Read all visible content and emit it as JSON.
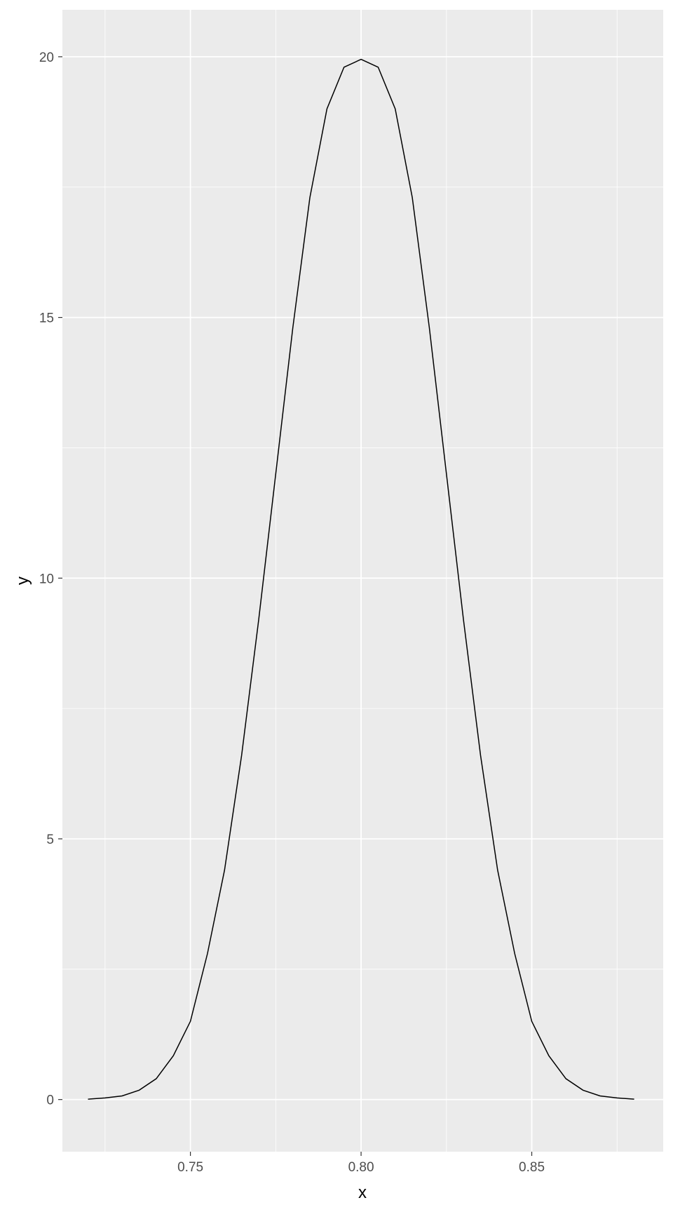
{
  "chart_data": {
    "type": "line",
    "title": "",
    "xlabel": "x",
    "ylabel": "y",
    "xlim": [
      0.7125,
      0.8885
    ],
    "ylim": [
      -1.0,
      20.9
    ],
    "x_ticks": [
      {
        "value": 0.75,
        "label": "0.75"
      },
      {
        "value": 0.8,
        "label": "0.80"
      },
      {
        "value": 0.85,
        "label": "0.85"
      }
    ],
    "y_ticks": [
      {
        "value": 0,
        "label": "0"
      },
      {
        "value": 5,
        "label": "5"
      },
      {
        "value": 10,
        "label": "10"
      },
      {
        "value": 15,
        "label": "15"
      },
      {
        "value": 20,
        "label": "20"
      }
    ],
    "x_minor": [
      0.725,
      0.775,
      0.825,
      0.875
    ],
    "y_minor": [
      2.5,
      7.5,
      12.5,
      17.5
    ],
    "grid": true,
    "panel_background": "#ebebeb",
    "grid_color": "#ffffff",
    "line_color": "#000000",
    "series": [
      {
        "x": [
          0.72,
          0.725,
          0.73,
          0.735,
          0.74,
          0.745,
          0.75,
          0.755,
          0.76,
          0.765,
          0.77,
          0.775,
          0.78,
          0.785,
          0.79,
          0.795,
          0.8,
          0.805,
          0.81,
          0.815,
          0.82,
          0.825,
          0.83,
          0.835,
          0.84,
          0.845,
          0.85,
          0.855,
          0.86,
          0.865,
          0.87,
          0.875,
          0.88
        ],
        "y": [
          0.007,
          0.03,
          0.07,
          0.18,
          0.4,
          0.84,
          1.5,
          2.8,
          4.4,
          6.6,
          9.2,
          12.0,
          14.8,
          17.3,
          19.0,
          19.8,
          19.95,
          19.8,
          19.0,
          17.3,
          14.8,
          12.0,
          9.2,
          6.6,
          4.4,
          2.8,
          1.5,
          0.84,
          0.4,
          0.18,
          0.07,
          0.03,
          0.007
        ]
      }
    ]
  }
}
